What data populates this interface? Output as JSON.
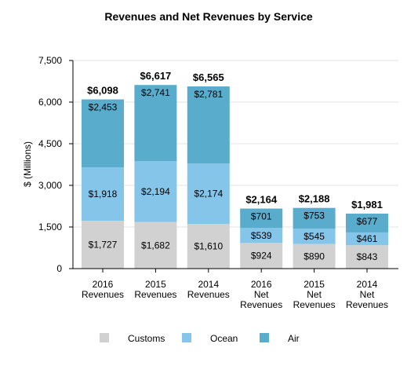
{
  "chart_data": {
    "type": "bar",
    "stacked": true,
    "title": "Revenues and Net Revenues by Service",
    "ylabel": "$ (Millions)",
    "xlabel": "",
    "ylim": [
      0,
      7500
    ],
    "yticks": [
      0,
      1500,
      3000,
      4500,
      6000,
      7500
    ],
    "ytick_labels": [
      "0",
      "1,500",
      "3,000",
      "4,500",
      "6,000",
      "7,500"
    ],
    "grid": true,
    "legend_position": "bottom",
    "categories": [
      [
        "2016",
        "Revenues"
      ],
      [
        "2015",
        "Revenues"
      ],
      [
        "2014",
        "Revenues"
      ],
      [
        "2016",
        "Net",
        "Revenues"
      ],
      [
        "2015",
        "Net",
        "Revenues"
      ],
      [
        "2014",
        "Net",
        "Revenues"
      ]
    ],
    "series": [
      {
        "name": "Customs",
        "color": "#d1d1d1",
        "values": [
          1727,
          1682,
          1610,
          924,
          890,
          843
        ],
        "labels": [
          "$1,727",
          "$1,682",
          "$1,610",
          "$924",
          "$890",
          "$843"
        ]
      },
      {
        "name": "Ocean",
        "color": "#85c5ea",
        "values": [
          1918,
          2194,
          2174,
          539,
          545,
          461
        ],
        "labels": [
          "$1,918",
          "$2,194",
          "$2,174",
          "$539",
          "$545",
          "$461"
        ]
      },
      {
        "name": "Air",
        "color": "#5aaccc",
        "values": [
          2453,
          2741,
          2781,
          701,
          753,
          677
        ],
        "labels": [
          "$2,453",
          "$2,741",
          "$2,781",
          "$701",
          "$753",
          "$677"
        ]
      }
    ],
    "totals": [
      6098,
      6617,
      6565,
      2164,
      2188,
      1981
    ],
    "total_labels": [
      "$6,098",
      "$6,617",
      "$6,565",
      "$2,164",
      "$2,188",
      "$1,981"
    ]
  }
}
